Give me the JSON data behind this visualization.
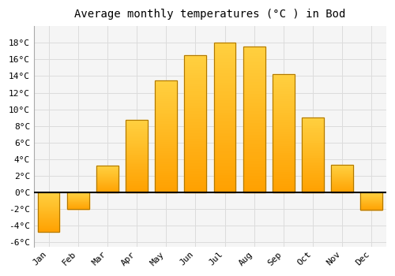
{
  "title": "Average monthly temperatures (°C ) in Bod",
  "months": [
    "Jan",
    "Feb",
    "Mar",
    "Apr",
    "May",
    "Jun",
    "Jul",
    "Aug",
    "Sep",
    "Oct",
    "Nov",
    "Dec"
  ],
  "temperatures": [
    -4.7,
    -2.0,
    3.2,
    8.7,
    13.5,
    16.5,
    18.0,
    17.6,
    14.2,
    9.0,
    3.3,
    -2.1
  ],
  "bar_color_bottom": "#FFA000",
  "bar_color_top": "#FFD040",
  "bar_edge_color": "#B07800",
  "background_color": "#FFFFFF",
  "plot_bg_color": "#F5F5F5",
  "grid_color": "#DCDCDC",
  "ylim": [
    -6.5,
    20
  ],
  "yticks": [
    -6,
    -4,
    -2,
    0,
    2,
    4,
    6,
    8,
    10,
    12,
    14,
    16,
    18
  ],
  "zero_line_color": "#000000",
  "title_fontsize": 10,
  "tick_fontsize": 8,
  "bar_width": 0.75
}
